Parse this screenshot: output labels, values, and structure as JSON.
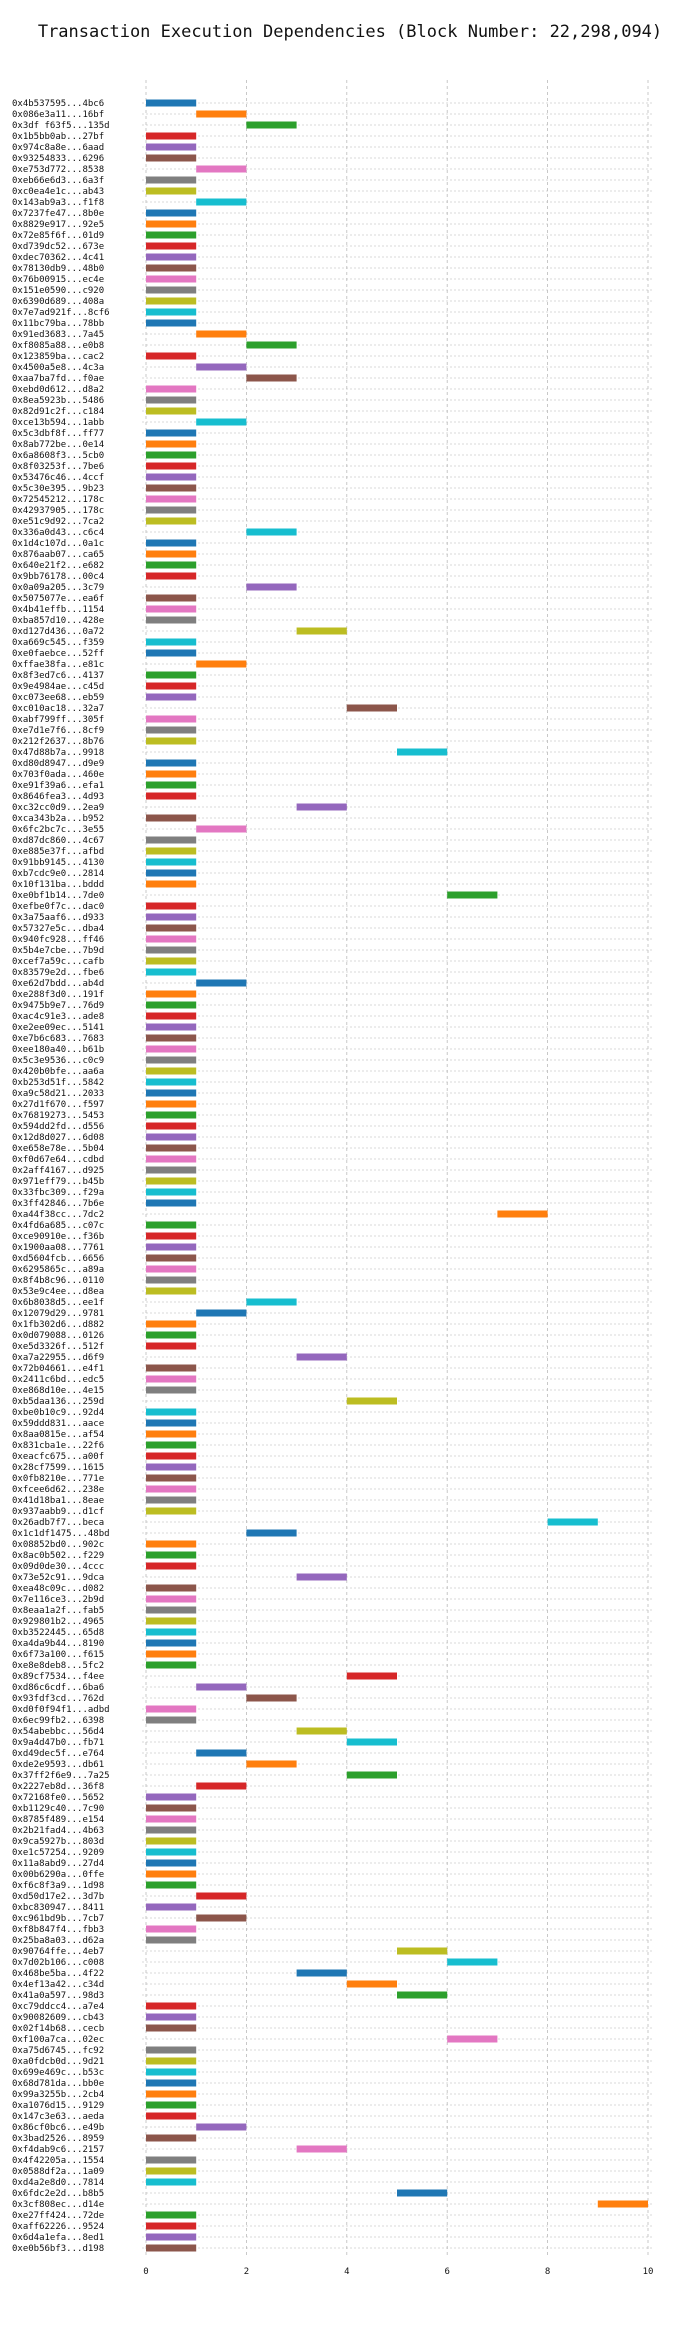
{
  "chart_data": {
    "type": "bar",
    "orientation": "horizontal-gantt",
    "title": "Transaction Execution Dependencies (Block Number: 22,298,094)",
    "xlabel": "",
    "ylabel": "",
    "xlim": [
      0,
      10
    ],
    "xticks": [
      0,
      2,
      4,
      6,
      8,
      10
    ],
    "grid": true,
    "legend": "none",
    "palette": [
      "#1f77b4",
      "#ff7f0e",
      "#2ca02c",
      "#d62728",
      "#9467bd",
      "#8c564b",
      "#e377c2",
      "#7f7f7f",
      "#bcbd22",
      "#17becf"
    ],
    "transactions": [
      {
        "label": "0x4b537595...4bc6",
        "start": 0,
        "end": 1
      },
      {
        "label": "0x086e3a11...16bf",
        "start": 1,
        "end": 2
      },
      {
        "label": "0x3df f63f5...135d",
        "start": 2,
        "end": 3
      },
      {
        "label": "0x1b5bb0ab...27bf",
        "start": 0,
        "end": 1
      },
      {
        "label": "0x974c8a8e...6aad",
        "start": 0,
        "end": 1
      },
      {
        "label": "0x93254833...6296",
        "start": 0,
        "end": 1
      },
      {
        "label": "0xe753d772...8538",
        "start": 1,
        "end": 2
      },
      {
        "label": "0xeb66e6d3...6a3f",
        "start": 0,
        "end": 1
      },
      {
        "label": "0xc0ea4e1c...ab43",
        "start": 0,
        "end": 1
      },
      {
        "label": "0x143ab9a3...f1f8",
        "start": 1,
        "end": 2
      },
      {
        "label": "0x7237fe47...8b0e",
        "start": 0,
        "end": 1
      },
      {
        "label": "0x8829e917...92e5",
        "start": 0,
        "end": 1
      },
      {
        "label": "0x72e85f6f...01d9",
        "start": 0,
        "end": 1
      },
      {
        "label": "0xd739dc52...673e",
        "start": 0,
        "end": 1
      },
      {
        "label": "0xdec70362...4c41",
        "start": 0,
        "end": 1
      },
      {
        "label": "0x78130db9...48b0",
        "start": 0,
        "end": 1
      },
      {
        "label": "0x76b00915...ec4e",
        "start": 0,
        "end": 1
      },
      {
        "label": "0x151e0590...c920",
        "start": 0,
        "end": 1
      },
      {
        "label": "0x6390d689...408a",
        "start": 0,
        "end": 1
      },
      {
        "label": "0x7e7ad921f...8cf6",
        "start": 0,
        "end": 1
      },
      {
        "label": "0x11bc79ba...78bb",
        "start": 0,
        "end": 1
      },
      {
        "label": "0x91ed3683...7a45",
        "start": 1,
        "end": 2
      },
      {
        "label": "0xf8085a88...e0b8",
        "start": 2,
        "end": 3
      },
      {
        "label": "0x123859ba...cac2",
        "start": 0,
        "end": 1
      },
      {
        "label": "0x4500a5e8...4c3a",
        "start": 1,
        "end": 2
      },
      {
        "label": "0xaa7ba7fd...f0ae",
        "start": 2,
        "end": 3
      },
      {
        "label": "0xebd0d612...d8a2",
        "start": 0,
        "end": 1
      },
      {
        "label": "0x8ea5923b...5486",
        "start": 0,
        "end": 1
      },
      {
        "label": "0x82d91c2f...c184",
        "start": 0,
        "end": 1
      },
      {
        "label": "0xce13b594...1abb",
        "start": 1,
        "end": 2
      },
      {
        "label": "0x5c3dbf8f...ff77",
        "start": 0,
        "end": 1
      },
      {
        "label": "0x8ab772be...0e14",
        "start": 0,
        "end": 1
      },
      {
        "label": "0x6a8608f3...5cb0",
        "start": 0,
        "end": 1
      },
      {
        "label": "0x8f03253f...7be6",
        "start": 0,
        "end": 1
      },
      {
        "label": "0x53476c46...4ccf",
        "start": 0,
        "end": 1
      },
      {
        "label": "0x5c30e395...9b23",
        "start": 0,
        "end": 1
      },
      {
        "label": "0x72545212...178c",
        "start": 0,
        "end": 1
      },
      {
        "label": "0x42937905...178c",
        "start": 0,
        "end": 1
      },
      {
        "label": "0xe51c9d92...7ca2",
        "start": 0,
        "end": 1
      },
      {
        "label": "0x336a0d43...c6c4",
        "start": 2,
        "end": 3
      },
      {
        "label": "0x1d4c107d...0a1c",
        "start": 0,
        "end": 1
      },
      {
        "label": "0x876aab07...ca65",
        "start": 0,
        "end": 1
      },
      {
        "label": "0x640e21f2...e682",
        "start": 0,
        "end": 1
      },
      {
        "label": "0x9bb76178...00c4",
        "start": 0,
        "end": 1
      },
      {
        "label": "0x0a09a205...3c79",
        "start": 2,
        "end": 3
      },
      {
        "label": "0x5075077e...ea6f",
        "start": 0,
        "end": 1
      },
      {
        "label": "0x4b41effb...1154",
        "start": 0,
        "end": 1
      },
      {
        "label": "0xba857d10...428e",
        "start": 0,
        "end": 1
      },
      {
        "label": "0xd127d436...0a72",
        "start": 3,
        "end": 4
      },
      {
        "label": "0xa669c545...f359",
        "start": 0,
        "end": 1
      },
      {
        "label": "0xe0faebce...52ff",
        "start": 0,
        "end": 1
      },
      {
        "label": "0xffae38fa...e81c",
        "start": 1,
        "end": 2
      },
      {
        "label": "0x8f3ed7c6...4137",
        "start": 0,
        "end": 1
      },
      {
        "label": "0x9e4984ae...c45d",
        "start": 0,
        "end": 1
      },
      {
        "label": "0xc073ee68...eb59",
        "start": 0,
        "end": 1
      },
      {
        "label": "0xc010ac18...32a7",
        "start": 4,
        "end": 5
      },
      {
        "label": "0xabf799ff...305f",
        "start": 0,
        "end": 1
      },
      {
        "label": "0xe7d1e7f6...8cf9",
        "start": 0,
        "end": 1
      },
      {
        "label": "0x212f2637...8b76",
        "start": 0,
        "end": 1
      },
      {
        "label": "0x47d88b7a...9918",
        "start": 5,
        "end": 6
      },
      {
        "label": "0xd80d8947...d9e9",
        "start": 0,
        "end": 1
      },
      {
        "label": "0x703f0ada...460e",
        "start": 0,
        "end": 1
      },
      {
        "label": "0xe91f39a6...efa1",
        "start": 0,
        "end": 1
      },
      {
        "label": "0x8646fea3...4d93",
        "start": 0,
        "end": 1
      },
      {
        "label": "0xc32cc0d9...2ea9",
        "start": 3,
        "end": 4
      },
      {
        "label": "0xca343b2a...b952",
        "start": 0,
        "end": 1
      },
      {
        "label": "0x6fc2bc7c...3e55",
        "start": 1,
        "end": 2
      },
      {
        "label": "0xd87dc860...4c67",
        "start": 0,
        "end": 1
      },
      {
        "label": "0xe885e37f...afbd",
        "start": 0,
        "end": 1
      },
      {
        "label": "0x91bb9145...4130",
        "start": 0,
        "end": 1
      },
      {
        "label": "0xb7cdc9e0...2814",
        "start": 0,
        "end": 1
      },
      {
        "label": "0x10f131ba...bddd",
        "start": 0,
        "end": 1
      },
      {
        "label": "0xe0bf1b14...7de0",
        "start": 6,
        "end": 7
      },
      {
        "label": "0xefbe0f7c...dac0",
        "start": 0,
        "end": 1
      },
      {
        "label": "0x3a75aaf6...d933",
        "start": 0,
        "end": 1
      },
      {
        "label": "0x57327e5c...dba4",
        "start": 0,
        "end": 1
      },
      {
        "label": "0x940fc928...ff46",
        "start": 0,
        "end": 1
      },
      {
        "label": "0x5b4e7cbe...7b9d",
        "start": 0,
        "end": 1
      },
      {
        "label": "0xcef7a59c...cafb",
        "start": 0,
        "end": 1
      },
      {
        "label": "0x83579e2d...fbe6",
        "start": 0,
        "end": 1
      },
      {
        "label": "0xe62d7bdd...ab4d",
        "start": 1,
        "end": 2
      },
      {
        "label": "0xe288f3d0...191f",
        "start": 0,
        "end": 1
      },
      {
        "label": "0x9475b9e7...76d9",
        "start": 0,
        "end": 1
      },
      {
        "label": "0xac4c91e3...ade8",
        "start": 0,
        "end": 1
      },
      {
        "label": "0xe2ee09ec...5141",
        "start": 0,
        "end": 1
      },
      {
        "label": "0xe7b6c683...7683",
        "start": 0,
        "end": 1
      },
      {
        "label": "0xee180a40...b61b",
        "start": 0,
        "end": 1
      },
      {
        "label": "0x5c3e9536...c0c9",
        "start": 0,
        "end": 1
      },
      {
        "label": "0x420b0bfe...aa6a",
        "start": 0,
        "end": 1
      },
      {
        "label": "0xb253d51f...5842",
        "start": 0,
        "end": 1
      },
      {
        "label": "0xa9c58d21...2033",
        "start": 0,
        "end": 1
      },
      {
        "label": "0x27d1f670...f597",
        "start": 0,
        "end": 1
      },
      {
        "label": "0x76819273...5453",
        "start": 0,
        "end": 1
      },
      {
        "label": "0x594dd2fd...d556",
        "start": 0,
        "end": 1
      },
      {
        "label": "0x12d8d027...6d08",
        "start": 0,
        "end": 1
      },
      {
        "label": "0xe658e78e...5b04",
        "start": 0,
        "end": 1
      },
      {
        "label": "0xf0d67e64...cdbd",
        "start": 0,
        "end": 1
      },
      {
        "label": "0x2aff4167...d925",
        "start": 0,
        "end": 1
      },
      {
        "label": "0x971eff79...b45b",
        "start": 0,
        "end": 1
      },
      {
        "label": "0x33fbc309...f29a",
        "start": 0,
        "end": 1
      },
      {
        "label": "0x3ff42846...7b6e",
        "start": 0,
        "end": 1
      },
      {
        "label": "0xa44f38cc...7dc2",
        "start": 7,
        "end": 8
      },
      {
        "label": "0x4fd6a685...c07c",
        "start": 0,
        "end": 1
      },
      {
        "label": "0xce90910e...f36b",
        "start": 0,
        "end": 1
      },
      {
        "label": "0x1900aa08...7761",
        "start": 0,
        "end": 1
      },
      {
        "label": "0xd5604fcb...6656",
        "start": 0,
        "end": 1
      },
      {
        "label": "0x6295865c...a89a",
        "start": 0,
        "end": 1
      },
      {
        "label": "0x8f4b8c96...0110",
        "start": 0,
        "end": 1
      },
      {
        "label": "0x53e9c4ee...d8ea",
        "start": 0,
        "end": 1
      },
      {
        "label": "0x6b8038d5...ee1f",
        "start": 2,
        "end": 3
      },
      {
        "label": "0x12079d29...9781",
        "start": 1,
        "end": 2
      },
      {
        "label": "0x1fb302d6...d882",
        "start": 0,
        "end": 1
      },
      {
        "label": "0x0d079088...0126",
        "start": 0,
        "end": 1
      },
      {
        "label": "0xe5d3326f...512f",
        "start": 0,
        "end": 1
      },
      {
        "label": "0xa7a22955...d6f9",
        "start": 3,
        "end": 4
      },
      {
        "label": "0x72b04661...e4f1",
        "start": 0,
        "end": 1
      },
      {
        "label": "0x2411c6bd...edc5",
        "start": 0,
        "end": 1
      },
      {
        "label": "0xe868d10e...4e15",
        "start": 0,
        "end": 1
      },
      {
        "label": "0xb5daa136...259d",
        "start": 4,
        "end": 5
      },
      {
        "label": "0xbe0b10c9...92d4",
        "start": 0,
        "end": 1
      },
      {
        "label": "0x59ddd831...aace",
        "start": 0,
        "end": 1
      },
      {
        "label": "0x8aa0815e...af54",
        "start": 0,
        "end": 1
      },
      {
        "label": "0x831cba1e...22f6",
        "start": 0,
        "end": 1
      },
      {
        "label": "0xeacfc675...a00f",
        "start": 0,
        "end": 1
      },
      {
        "label": "0x28cf7599...1615",
        "start": 0,
        "end": 1
      },
      {
        "label": "0x0fb8210e...771e",
        "start": 0,
        "end": 1
      },
      {
        "label": "0xfcee6d62...238e",
        "start": 0,
        "end": 1
      },
      {
        "label": "0x41d18ba1...8eae",
        "start": 0,
        "end": 1
      },
      {
        "label": "0x937aabb9...d1cf",
        "start": 0,
        "end": 1
      },
      {
        "label": "0x26adb7f7...beca",
        "start": 8,
        "end": 9
      },
      {
        "label": "0x1c1df1475...48bd",
        "start": 2,
        "end": 3
      },
      {
        "label": "0x08852bd0...902c",
        "start": 0,
        "end": 1
      },
      {
        "label": "0x8ac0b502...f229",
        "start": 0,
        "end": 1
      },
      {
        "label": "0x09d0de30...4ccc",
        "start": 0,
        "end": 1
      },
      {
        "label": "0x73e52c91...9dca",
        "start": 3,
        "end": 4
      },
      {
        "label": "0xea48c09c...d082",
        "start": 0,
        "end": 1
      },
      {
        "label": "0x7e116ce3...2b9d",
        "start": 0,
        "end": 1
      },
      {
        "label": "0x8eaa1a2f...fab5",
        "start": 0,
        "end": 1
      },
      {
        "label": "0x929801b2...4965",
        "start": 0,
        "end": 1
      },
      {
        "label": "0xb3522445...65d8",
        "start": 0,
        "end": 1
      },
      {
        "label": "0xa4da9b44...8190",
        "start": 0,
        "end": 1
      },
      {
        "label": "0x6f73a100...f615",
        "start": 0,
        "end": 1
      },
      {
        "label": "0xe8e8deb8...5fc2",
        "start": 0,
        "end": 1
      },
      {
        "label": "0x89cf7534...f4ee",
        "start": 4,
        "end": 5
      },
      {
        "label": "0xd86c6cdf...6ba6",
        "start": 1,
        "end": 2
      },
      {
        "label": "0x93fdf3cd...762d",
        "start": 2,
        "end": 3
      },
      {
        "label": "0xd0f0f94f1...adbd",
        "start": 0,
        "end": 1
      },
      {
        "label": "0x6ec99fb2...6398",
        "start": 0,
        "end": 1
      },
      {
        "label": "0x54abebbc...56d4",
        "start": 3,
        "end": 4
      },
      {
        "label": "0x9a4d47b0...fb71",
        "start": 4,
        "end": 5
      },
      {
        "label": "0xd49dec5f...e764",
        "start": 1,
        "end": 2
      },
      {
        "label": "0xde2e9593...db61",
        "start": 2,
        "end": 3
      },
      {
        "label": "0x37ff2f6e9...7a25",
        "start": 4,
        "end": 5
      },
      {
        "label": "0x2227eb8d...36f8",
        "start": 1,
        "end": 2
      },
      {
        "label": "0x72168fe0...5652",
        "start": 0,
        "end": 1
      },
      {
        "label": "0xb1129c40...7c90",
        "start": 0,
        "end": 1
      },
      {
        "label": "0x8785f489...e154",
        "start": 0,
        "end": 1
      },
      {
        "label": "0x2b21fad4...4b63",
        "start": 0,
        "end": 1
      },
      {
        "label": "0x9ca5927b...803d",
        "start": 0,
        "end": 1
      },
      {
        "label": "0xe1c57254...9209",
        "start": 0,
        "end": 1
      },
      {
        "label": "0x11a8abd9...27d4",
        "start": 0,
        "end": 1
      },
      {
        "label": "0x00b6290a...0ffe",
        "start": 0,
        "end": 1
      },
      {
        "label": "0xf6c8f3a9...1d98",
        "start": 0,
        "end": 1
      },
      {
        "label": "0xd50d17e2...3d7b",
        "start": 1,
        "end": 2
      },
      {
        "label": "0xbc830947...8411",
        "start": 0,
        "end": 1
      },
      {
        "label": "0xc961bd9b...7cb7",
        "start": 1,
        "end": 2
      },
      {
        "label": "0xf8b847f4...fbb3",
        "start": 0,
        "end": 1
      },
      {
        "label": "0x25ba8a03...d62a",
        "start": 0,
        "end": 1
      },
      {
        "label": "0x90764ffe...4eb7",
        "start": 5,
        "end": 6
      },
      {
        "label": "0x7d02b106...c008",
        "start": 6,
        "end": 7
      },
      {
        "label": "0x468be5ba...4f22",
        "start": 3,
        "end": 4
      },
      {
        "label": "0x4ef13a42...c34d",
        "start": 4,
        "end": 5
      },
      {
        "label": "0x41a0a597...98d3",
        "start": 5,
        "end": 6
      },
      {
        "label": "0xc79ddcc4...a7e4",
        "start": 0,
        "end": 1
      },
      {
        "label": "0x90082609...cb43",
        "start": 0,
        "end": 1
      },
      {
        "label": "0x02f14b68...cecb",
        "start": 0,
        "end": 1
      },
      {
        "label": "0xf100a7ca...02ec",
        "start": 6,
        "end": 7
      },
      {
        "label": "0xa75d6745...fc92",
        "start": 0,
        "end": 1
      },
      {
        "label": "0xa0fdcb0d...9d21",
        "start": 0,
        "end": 1
      },
      {
        "label": "0x699e469c...b53c",
        "start": 0,
        "end": 1
      },
      {
        "label": "0x68d781da...bb0e",
        "start": 0,
        "end": 1
      },
      {
        "label": "0x99a3255b...2cb4",
        "start": 0,
        "end": 1
      },
      {
        "label": "0xa1076d15...9129",
        "start": 0,
        "end": 1
      },
      {
        "label": "0x147c3e63...aeda",
        "start": 0,
        "end": 1
      },
      {
        "label": "0x86cf0bc6...e49b",
        "start": 1,
        "end": 2
      },
      {
        "label": "0x3bad2526...8959",
        "start": 0,
        "end": 1
      },
      {
        "label": "0xf4dab9c6...2157",
        "start": 3,
        "end": 4
      },
      {
        "label": "0x4f42205a...1554",
        "start": 0,
        "end": 1
      },
      {
        "label": "0x0588df2a...1a09",
        "start": 0,
        "end": 1
      },
      {
        "label": "0xd4a2e8d0...7814",
        "start": 0,
        "end": 1
      },
      {
        "label": "0x6fdc2e2d...b8b5",
        "start": 5,
        "end": 6
      },
      {
        "label": "0x3cf808ec...d14e",
        "start": 9,
        "end": 10
      },
      {
        "label": "0xe27ff424...72de",
        "start": 0,
        "end": 1
      },
      {
        "label": "0xaff62226...9524",
        "start": 0,
        "end": 1
      },
      {
        "label": "0x6d4a1efa...8ed1",
        "start": 0,
        "end": 1
      },
      {
        "label": "0xe0b56bf3...d198",
        "start": 0,
        "end": 1
      }
    ]
  }
}
